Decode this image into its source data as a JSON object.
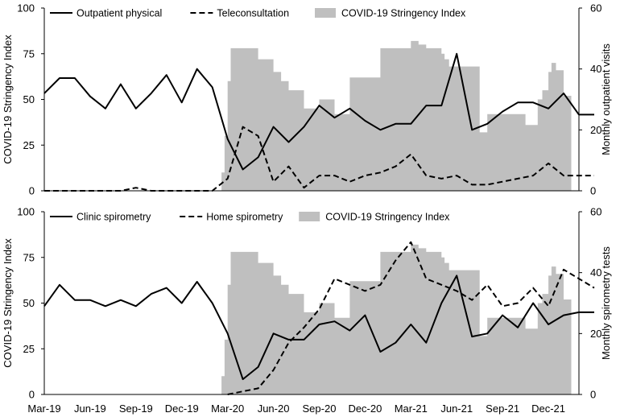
{
  "chart_data": [
    {
      "type": "line",
      "panel": "top",
      "ylabel_left": "COVID-19 Stringency Index",
      "ylabel_right": "Monthly outpatient visits",
      "ylim_left": [
        0,
        100
      ],
      "ylim_right": [
        0,
        60
      ],
      "yticks_left": [
        "0",
        "25",
        "50",
        "75",
        "100"
      ],
      "yticks_right": [
        "0",
        "20",
        "40",
        "60"
      ],
      "x_months_index": "0 = Mar-19, 1 = Apr-19, ... 34 = Jan-22",
      "series": [
        {
          "name": "Outpatient physical",
          "axis": "right",
          "style": "solid",
          "x": [
            0,
            1,
            2,
            3,
            4,
            5,
            6,
            7,
            8,
            9,
            10,
            11,
            12,
            13,
            14,
            15,
            16,
            17,
            18,
            19,
            20,
            21,
            22,
            23,
            24,
            25,
            26,
            27,
            28,
            29,
            30,
            31,
            32,
            33,
            34,
            35,
            36
          ],
          "values": [
            32,
            37,
            37,
            31,
            27,
            35,
            27,
            32,
            38,
            29,
            40,
            34,
            17,
            7,
            11,
            21,
            16,
            21,
            28,
            24,
            27,
            23,
            20,
            22,
            22,
            28,
            28,
            45,
            20,
            22,
            26,
            29,
            29,
            27,
            32,
            25,
            25
          ]
        },
        {
          "name": "Teleconsultation",
          "axis": "right",
          "style": "dashed",
          "x": [
            0,
            1,
            2,
            3,
            4,
            5,
            6,
            7,
            8,
            9,
            10,
            11,
            12,
            13,
            14,
            15,
            16,
            17,
            18,
            19,
            20,
            21,
            22,
            23,
            24,
            25,
            26,
            27,
            28,
            29,
            30,
            31,
            32,
            33,
            34,
            35,
            36
          ],
          "values": [
            0,
            0,
            0,
            0,
            0,
            0,
            1,
            0,
            0,
            0,
            0,
            0,
            4,
            21,
            18,
            3,
            8,
            1,
            5,
            5,
            3,
            5,
            6,
            8,
            12,
            5,
            4,
            5,
            2,
            2,
            3,
            4,
            5,
            9,
            5,
            5,
            5
          ]
        },
        {
          "name": "COVID-19 Stringency Index",
          "axis": "left",
          "style": "area",
          "x": [
            11.6,
            11.8,
            12.0,
            12.2,
            12.5,
            13.0,
            13.5,
            14.0,
            14.5,
            15.0,
            15.5,
            16.0,
            17.0,
            17.5,
            18.0,
            18.5,
            19.0,
            20.0,
            21.0,
            22.0,
            23.0,
            24.0,
            24.5,
            25.0,
            26.0,
            26.2,
            26.5,
            28.0,
            28.5,
            29.0,
            30.0,
            31.0,
            31.5,
            32.0,
            32.3,
            32.6,
            33.0,
            33.2,
            33.5,
            34.0,
            34.5
          ],
          "values": [
            10,
            30,
            60,
            78,
            78,
            78,
            78,
            72,
            72,
            65,
            60,
            55,
            45,
            45,
            50,
            50,
            42,
            62,
            62,
            78,
            78,
            82,
            80,
            78,
            75,
            72,
            68,
            68,
            32,
            42,
            42,
            42,
            36,
            36,
            50,
            55,
            65,
            70,
            66,
            52,
            44
          ]
        }
      ]
    },
    {
      "type": "line",
      "panel": "bottom",
      "ylabel_left": "COVID-19 Stringency Index",
      "ylabel_right": "Monthly spirometry tests",
      "ylim_left": [
        0,
        100
      ],
      "ylim_right": [
        0,
        60
      ],
      "yticks_left": [
        "0",
        "25",
        "50",
        "75",
        "100"
      ],
      "yticks_right": [
        "0",
        "20",
        "40",
        "60"
      ],
      "categories": [
        "Mar-19",
        "Jun-19",
        "Sep-19",
        "Dec-19",
        "Mar-20",
        "Jun-20",
        "Sep-20",
        "Dec-20",
        "Mar-21",
        "Jun-21",
        "Sep-21",
        "Dec-21"
      ],
      "series": [
        {
          "name": "Clinic spirometry",
          "axis": "right",
          "style": "solid",
          "x": [
            0,
            1,
            2,
            3,
            4,
            5,
            6,
            7,
            8,
            9,
            10,
            11,
            12,
            13,
            14,
            15,
            16,
            17,
            18,
            19,
            20,
            21,
            22,
            23,
            24,
            25,
            26,
            27,
            28,
            29,
            30,
            31,
            32,
            33,
            34,
            35,
            36
          ],
          "values": [
            29,
            36,
            31,
            31,
            29,
            31,
            29,
            33,
            35,
            30,
            37,
            30,
            20,
            5,
            9,
            20,
            18,
            18,
            23,
            24,
            21,
            26,
            14,
            17,
            23,
            17,
            30,
            39,
            19,
            20,
            26,
            22,
            30,
            23,
            26,
            27,
            27
          ]
        },
        {
          "name": "Home spirometry",
          "axis": "right",
          "style": "dashed",
          "x": [
            12,
            13,
            14,
            15,
            16,
            17,
            18,
            19,
            20,
            21,
            22,
            23,
            24,
            25,
            26,
            27,
            28,
            29,
            30,
            31,
            32,
            33,
            34,
            35,
            36
          ],
          "values": [
            0,
            1,
            2,
            8,
            17,
            22,
            28,
            38,
            36,
            34,
            36,
            44,
            50,
            38,
            36,
            34,
            31,
            36,
            29,
            30,
            35,
            29,
            41,
            38,
            35
          ]
        },
        {
          "name": "COVID-19 Stringency Index",
          "axis": "left",
          "style": "area",
          "x": [
            11.6,
            11.8,
            12.0,
            12.2,
            12.5,
            13.0,
            13.5,
            14.0,
            14.5,
            15.0,
            15.5,
            16.0,
            17.0,
            17.5,
            18.0,
            18.5,
            19.0,
            20.0,
            21.0,
            22.0,
            23.0,
            24.0,
            24.5,
            25.0,
            26.0,
            26.2,
            26.5,
            28.0,
            28.5,
            29.0,
            30.0,
            31.0,
            31.5,
            32.0,
            32.3,
            32.6,
            33.0,
            33.2,
            33.5,
            34.0,
            34.5
          ],
          "values": [
            10,
            30,
            60,
            78,
            78,
            78,
            78,
            72,
            72,
            65,
            60,
            55,
            45,
            45,
            50,
            50,
            42,
            62,
            62,
            78,
            78,
            82,
            80,
            78,
            75,
            72,
            68,
            68,
            32,
            42,
            42,
            42,
            36,
            36,
            50,
            55,
            65,
            70,
            66,
            52,
            44
          ]
        }
      ]
    }
  ],
  "colors": {
    "area": "#bfbfbf",
    "line": "#000000",
    "background": "#ffffff"
  }
}
